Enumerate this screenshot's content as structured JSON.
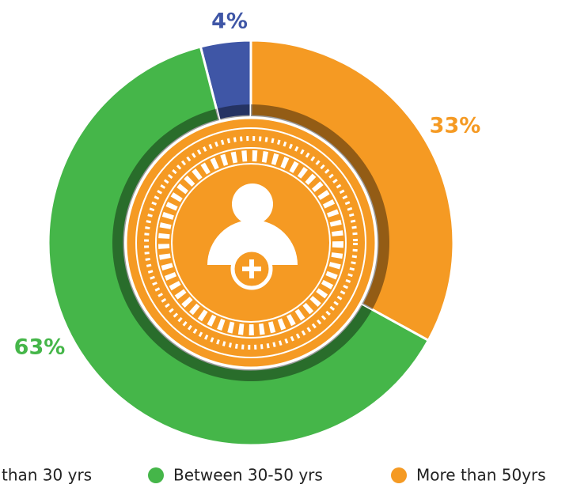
{
  "chart_data": {
    "type": "donut",
    "categories": [
      "than 30 yrs",
      "Between 30-50 yrs",
      "More than 50yrs"
    ],
    "values": [
      4,
      63,
      33
    ],
    "value_labels": [
      "4%",
      "63%",
      "33%"
    ],
    "colors": [
      "#3f56a6",
      "#45b649",
      "#f59a23"
    ],
    "legend": "bottom"
  }
}
